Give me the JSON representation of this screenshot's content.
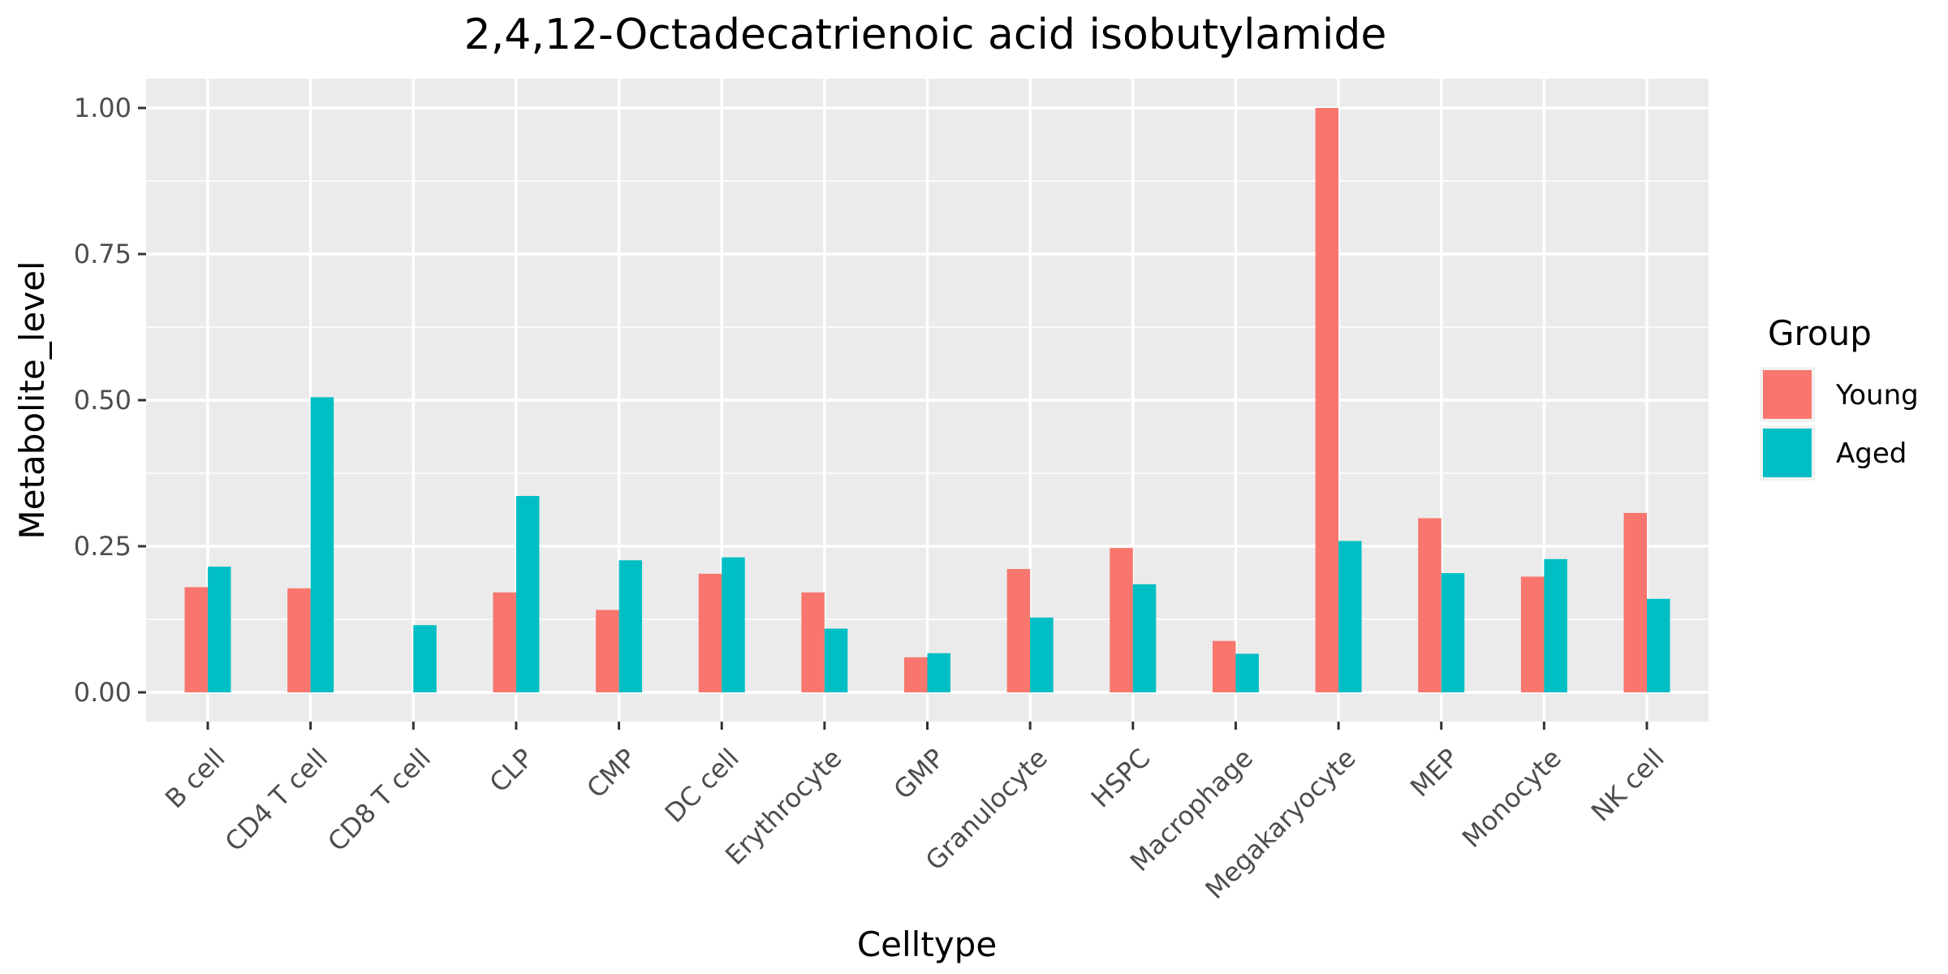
{
  "chart_data": {
    "type": "bar",
    "title": "2,4,12-Octadecatrienoic acid isobutylamide",
    "xlabel": "Celltype",
    "ylabel": "Metabolite_level",
    "ylim": [
      -0.05,
      1.05
    ],
    "yticks": [
      "0.00",
      "0.25",
      "0.50",
      "0.75",
      "1.00"
    ],
    "ytick_values": [
      0,
      0.25,
      0.5,
      0.75,
      1.0
    ],
    "grid": true,
    "legend": {
      "title": "Group",
      "position": "right"
    },
    "categories": [
      "B cell",
      "CD4 T cell",
      "CD8 T cell",
      "CLP",
      "CMP",
      "DC cell",
      "Erythrocyte",
      "GMP",
      "Granulocyte",
      "HSPC",
      "Macrophage",
      "Megakaryocyte",
      "MEP",
      "Monocyte",
      "NK cell"
    ],
    "series": [
      {
        "name": "Young",
        "color": "#F8766D",
        "values": [
          0.18,
          0.178,
          0.0,
          0.171,
          0.141,
          0.203,
          0.171,
          0.06,
          0.211,
          0.247,
          0.088,
          1.0,
          0.298,
          0.198,
          0.307
        ]
      },
      {
        "name": "Aged",
        "color": "#00BFC4",
        "values": [
          0.215,
          0.505,
          0.115,
          0.336,
          0.226,
          0.231,
          0.109,
          0.067,
          0.128,
          0.185,
          0.066,
          0.259,
          0.204,
          0.228,
          0.16
        ]
      }
    ]
  }
}
